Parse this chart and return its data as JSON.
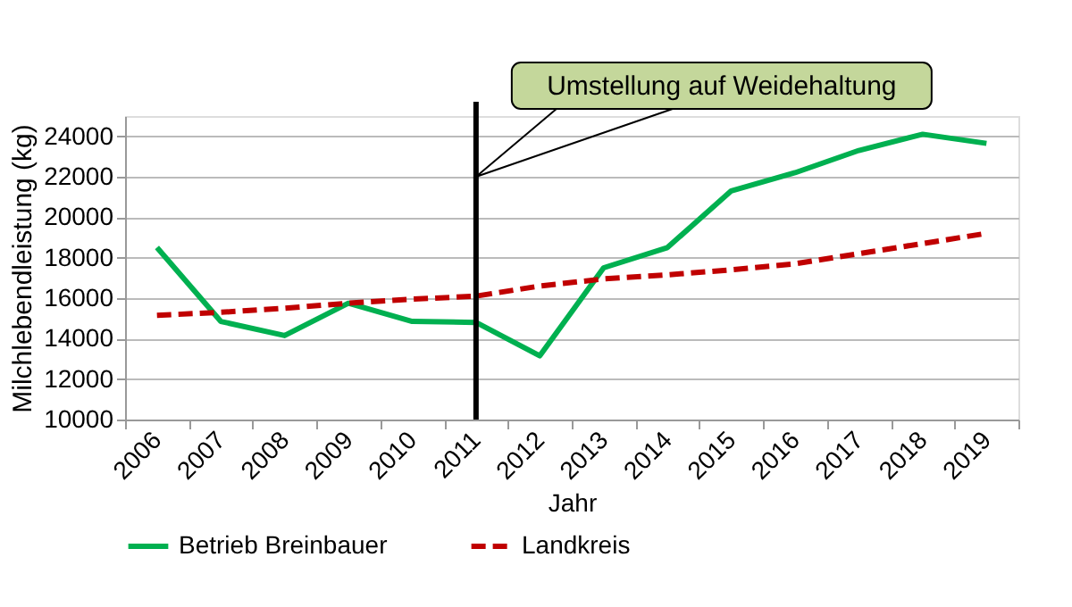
{
  "chart_data": {
    "type": "line",
    "xlabel": "Jahr",
    "ylabel": "Milchlebendleistung (kg)",
    "categories": [
      "2006",
      "2007",
      "2008",
      "2009",
      "2010",
      "2011",
      "2012",
      "2013",
      "2014",
      "2015",
      "2016",
      "2017",
      "2018",
      "2019"
    ],
    "series": [
      {
        "name": "Betrieb Breinbauer",
        "color": "#00b050",
        "line_style": "solid",
        "values": [
          18500,
          14850,
          14150,
          15750,
          14850,
          14800,
          13150,
          17500,
          18500,
          21300,
          22200,
          23300,
          24100,
          23650
        ]
      },
      {
        "name": "Landkreis",
        "color": "#c00000",
        "line_style": "dashed",
        "values": [
          15150,
          15300,
          15500,
          15750,
          15950,
          16100,
          16600,
          16950,
          17150,
          17400,
          17700,
          18200,
          18700,
          19200
        ]
      }
    ],
    "ylim": [
      10000,
      25000
    ],
    "yticks": [
      10000,
      12000,
      14000,
      16000,
      18000,
      20000,
      22000,
      24000
    ],
    "grid": "y",
    "legend": "bottom",
    "marker": "none",
    "ref_lines": [
      {
        "axis": "x",
        "value": "2011",
        "color": "#000000",
        "label": "Umstellung auf Weidehaltung"
      }
    ]
  }
}
